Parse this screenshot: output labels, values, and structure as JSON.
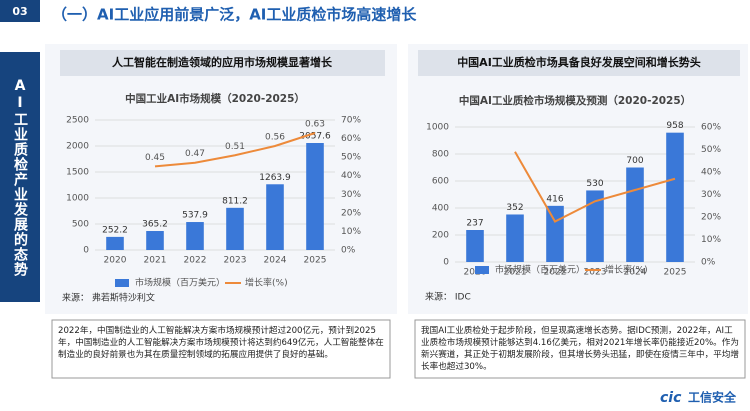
{
  "slide": {
    "section_number": "03",
    "sidebar": "AI工业质检产业发展的态势",
    "title": "（一）AI工业应用前景广泛，AI工业质检市场高速增长",
    "logo_mark": "cic",
    "logo": "工信安全"
  },
  "panels": [
    {
      "subtitle": "人工智能在制造领域的应用市场规模显著增长",
      "description": "2022年，中国制造业的人工智能解决方案市场规模预计超过200亿元，预计到2025年，中国制造业的人工智能解决方案市场规模预计将达到约649亿元，人工智能整体在制造业的良好前景也为其在质量控制领域的拓展应用提供了良好的基础。"
    },
    {
      "subtitle": "中国AI工业质检市场具备良好发展空间和增长势头",
      "description": "我国AI工业质检处于起步阶段，但呈现高速增长态势。据IDC预测，2022年，AI工业质检市场规模预计能够达到4.16亿美元，相对2021年增长率仍能接近20%。作为新兴赛道，其正处于初期发展阶段，但其增长势头迅猛，即使在疫情三年中，平均增长率也超过30%。"
    }
  ],
  "chart_data": [
    {
      "type": "combo",
      "title": "中国工业AI市场规模（2020-2025）",
      "source": "来源： 弗若斯特沙利文",
      "categories": [
        "2020",
        "2021",
        "2022",
        "2023",
        "2024",
        "2025"
      ],
      "series": [
        {
          "name": "市场规模（百万美元）",
          "type": "bar",
          "color": "#3a78d8",
          "values": [
            252.2,
            365.2,
            537.9,
            811.2,
            1263.9,
            2057.6
          ]
        },
        {
          "name": "增长率(%)",
          "type": "line",
          "axis": "y2",
          "color": "#ed8a3a",
          "values": [
            null,
            45,
            47,
            51,
            56,
            63
          ],
          "value_labels": [
            null,
            "0.45",
            "0.47",
            "0.51",
            "0.56",
            "0.63"
          ]
        }
      ],
      "ylim": [
        0,
        2500
      ],
      "yticks": [
        0,
        500,
        1000,
        1500,
        2000,
        2500
      ],
      "y2lim": [
        0,
        70
      ],
      "y2ticks": [
        {
          "value": 0,
          "label": "0%"
        },
        {
          "value": 10,
          "label": "10%"
        },
        {
          "value": 20,
          "label": "20%"
        },
        {
          "value": 30,
          "label": "30%"
        },
        {
          "value": 40,
          "label": "40%"
        },
        {
          "value": 50,
          "label": "50%"
        },
        {
          "value": 60,
          "label": "60%"
        },
        {
          "value": 70,
          "label": "70%"
        }
      ],
      "grid": true
    },
    {
      "type": "combo",
      "title": "中国AI工业质检市场规模及预测（2020-2025）",
      "source": "来源： IDC",
      "categories": [
        "2020",
        "2021",
        "2022",
        "2023",
        "2024",
        "2025"
      ],
      "series": [
        {
          "name": "市场规模（百万美元）",
          "type": "bar",
          "color": "#3a78d8",
          "values": [
            237,
            352,
            416,
            530,
            700,
            958
          ]
        },
        {
          "name": "增长率(%)",
          "type": "line",
          "axis": "y2",
          "color": "#ed8a3a",
          "values": [
            null,
            49,
            18,
            27,
            32,
            37
          ]
        }
      ],
      "ylim": [
        0,
        1000
      ],
      "yticks": [
        0,
        200,
        400,
        600,
        800,
        1000
      ],
      "y2lim": [
        0,
        60
      ],
      "y2ticks": [
        {
          "value": 0,
          "label": "0%"
        },
        {
          "value": 10,
          "label": "10%"
        },
        {
          "value": 20,
          "label": "20%"
        },
        {
          "value": 30,
          "label": "30%"
        },
        {
          "value": 40,
          "label": "40%"
        },
        {
          "value": 50,
          "label": "50%"
        },
        {
          "value": 60,
          "label": "60%"
        }
      ],
      "grid": true
    }
  ]
}
